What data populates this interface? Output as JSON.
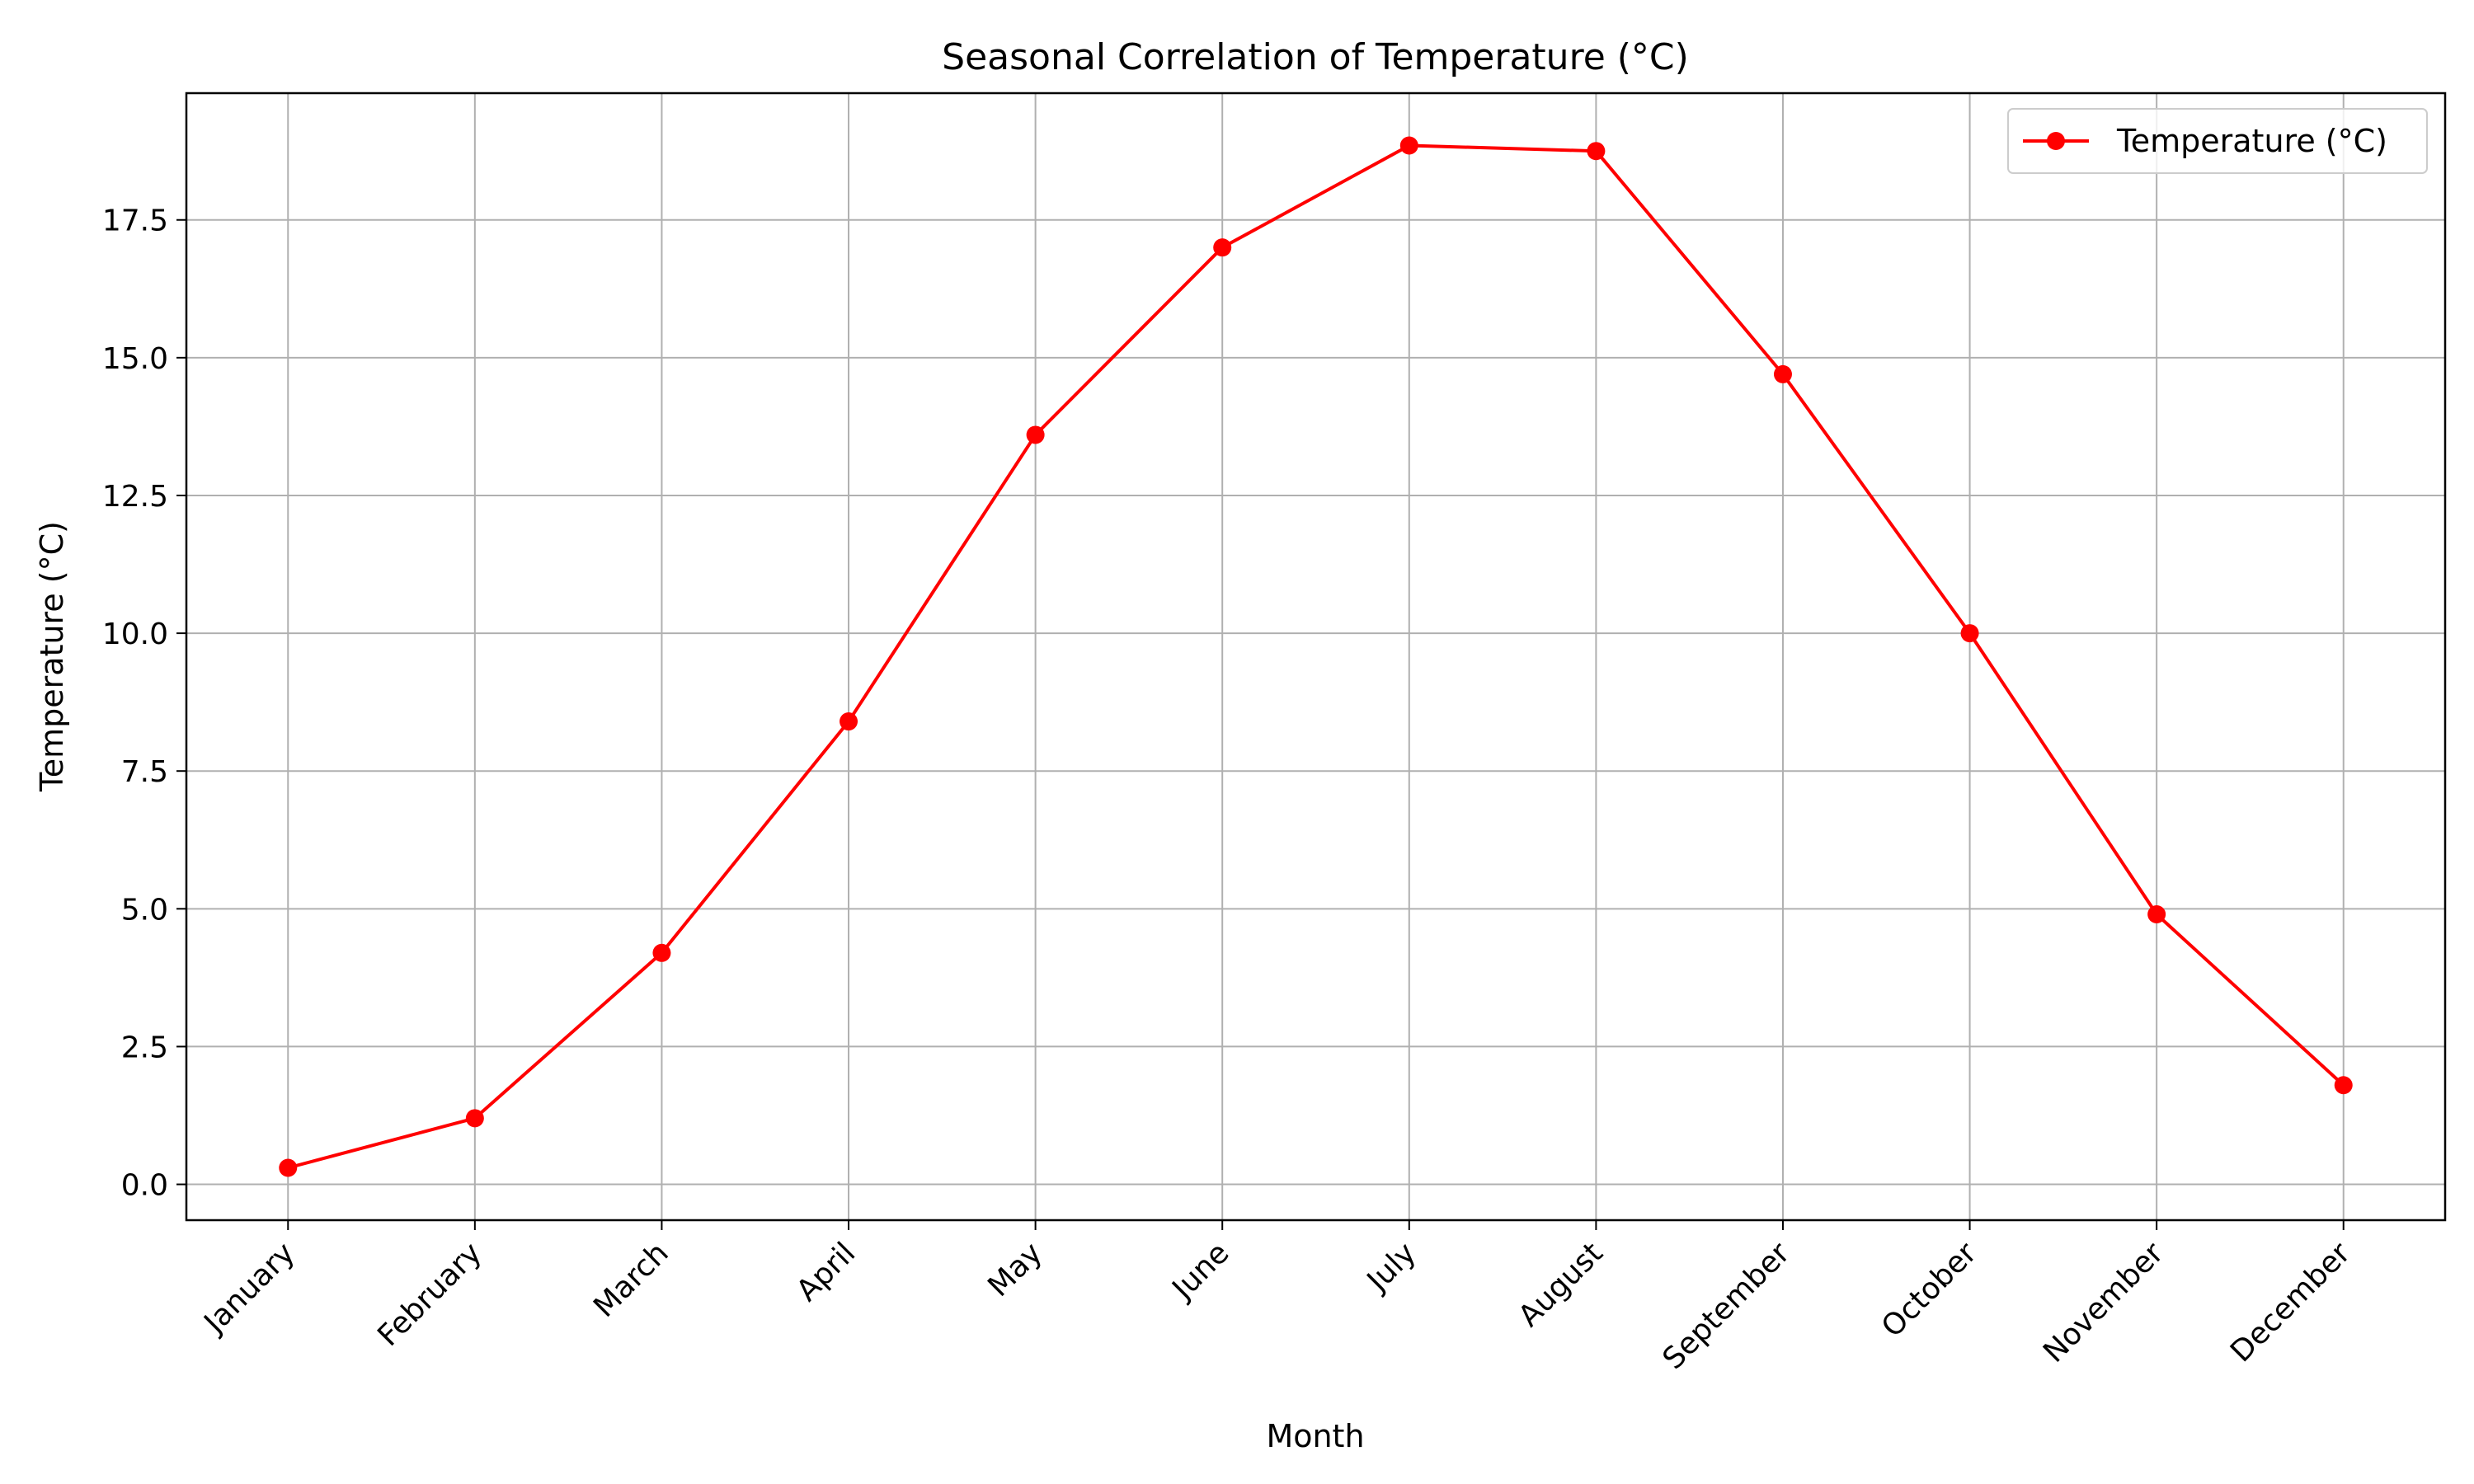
{
  "chart_data": {
    "type": "line",
    "title": "Seasonal Correlation of Temperature (°C)",
    "xlabel": "Month",
    "ylabel": "Temperature (°C)",
    "categories": [
      "January",
      "February",
      "March",
      "April",
      "May",
      "June",
      "July",
      "August",
      "September",
      "October",
      "November",
      "December"
    ],
    "series": [
      {
        "name": "Temperature (°C)",
        "color": "#ff0000",
        "marker": "circle",
        "values": [
          0.3,
          1.2,
          4.2,
          8.4,
          13.6,
          17.0,
          18.85,
          18.75,
          14.7,
          10.0,
          4.9,
          1.8
        ]
      }
    ],
    "ylim": [
      -0.65,
      19.8
    ],
    "yticks": [
      0.0,
      2.5,
      5.0,
      7.5,
      10.0,
      12.5,
      15.0,
      17.5
    ],
    "ytick_labels": [
      "0.0",
      "2.5",
      "5.0",
      "7.5",
      "10.0",
      "12.5",
      "15.0",
      "17.5"
    ],
    "grid": true,
    "legend_position": "top-right",
    "xtick_rotation": "45°"
  }
}
